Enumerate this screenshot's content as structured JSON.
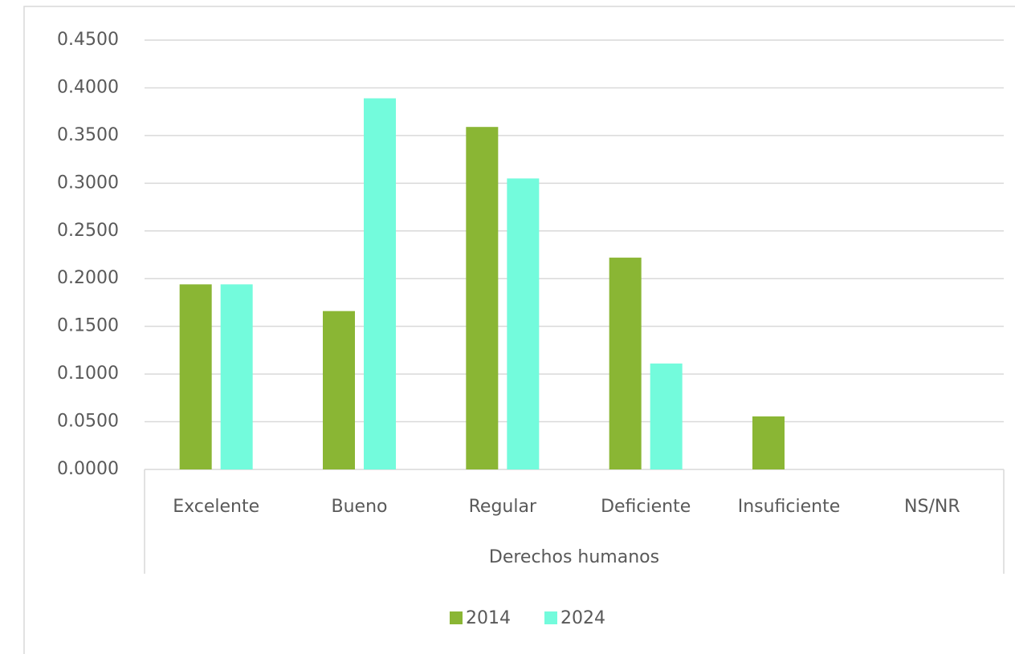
{
  "chart_data": {
    "type": "bar",
    "x_label": "Derechos humanos",
    "categories": [
      "Excelente",
      "Bueno",
      "Regular",
      "Deficiente",
      "Insuficiente",
      "NS/NR"
    ],
    "series": [
      {
        "name": "2014",
        "color": "#8ab634",
        "values": [
          0.194,
          0.166,
          0.359,
          0.222,
          0.0556,
          0
        ]
      },
      {
        "name": "2024",
        "color": "#73fbdc",
        "values": [
          0.194,
          0.389,
          0.305,
          0.111,
          0,
          0
        ]
      }
    ],
    "ylim": [
      0,
      0.45
    ],
    "yticks": [
      {
        "value": 0,
        "label": "0.0000"
      },
      {
        "value": 0.05,
        "label": "0.0500"
      },
      {
        "value": 0.1,
        "label": "0.1000"
      },
      {
        "value": 0.15,
        "label": "0.1500"
      },
      {
        "value": 0.2,
        "label": "0.2000"
      },
      {
        "value": 0.25,
        "label": "0.2500"
      },
      {
        "value": 0.3,
        "label": "0.3000"
      },
      {
        "value": 0.35,
        "label": "0.3500"
      },
      {
        "value": 0.4,
        "label": "0.4000"
      },
      {
        "value": 0.45,
        "label": "0.4500"
      }
    ],
    "grid": true,
    "legend": "bottom"
  }
}
